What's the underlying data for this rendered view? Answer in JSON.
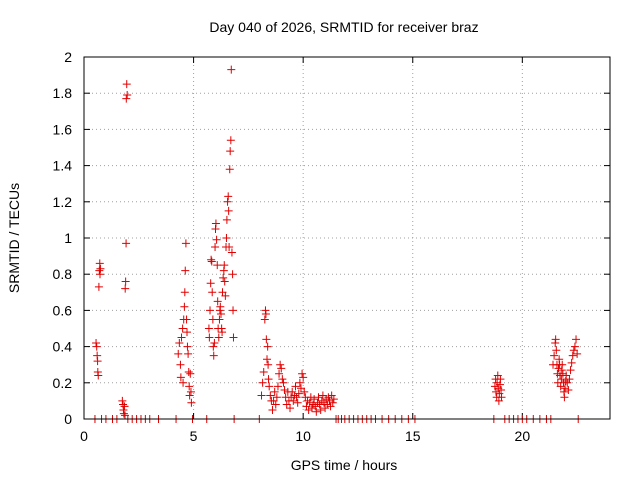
{
  "chart_data": {
    "type": "scatter",
    "title": "Day 040 of 2026, SRMTID for receiver braz",
    "xlabel": "GPS time / hours",
    "ylabel": "SRMTID / TECUs",
    "xlim": [
      0,
      24
    ],
    "ylim": [
      0,
      2
    ],
    "x_ticks": [
      0,
      5,
      10,
      15,
      20
    ],
    "x_tick_labels": [
      "0",
      "5",
      "10",
      "15",
      "20"
    ],
    "y_ticks": [
      0,
      0.2,
      0.4,
      0.6,
      0.8,
      1,
      1.2,
      1.4,
      1.6,
      1.8,
      2
    ],
    "y_tick_labels": [
      "0",
      "0.2",
      "0.4",
      "0.6",
      "0.8",
      "1",
      "1.2",
      "1.4",
      "1.6",
      "1.8",
      "2"
    ],
    "grid": true,
    "marker": "plus",
    "color": "#e00000",
    "series": [
      {
        "name": "SRMTID",
        "points": [
          [
            0.5,
            0.0
          ],
          [
            0.55,
            0.42
          ],
          [
            0.58,
            0.4
          ],
          [
            0.6,
            0.35
          ],
          [
            0.62,
            0.32
          ],
          [
            0.63,
            0.26
          ],
          [
            0.65,
            0.24
          ],
          [
            0.68,
            0.73
          ],
          [
            0.7,
            0.82
          ],
          [
            0.72,
            0.86
          ],
          [
            0.73,
            0.8
          ],
          [
            0.75,
            0.83
          ],
          [
            0.8,
            0.0
          ],
          [
            1.0,
            0.0
          ],
          [
            1.3,
            0.0
          ],
          [
            1.5,
            0.0
          ],
          [
            1.75,
            0.1
          ],
          [
            1.78,
            0.08
          ],
          [
            1.8,
            0.05
          ],
          [
            1.82,
            0.03
          ],
          [
            1.85,
            0.07
          ],
          [
            1.87,
            0.02
          ],
          [
            1.88,
            0.72
          ],
          [
            1.9,
            0.76
          ],
          [
            1.92,
            0.97
          ],
          [
            1.93,
            1.77
          ],
          [
            1.95,
            1.85
          ],
          [
            1.97,
            1.79
          ],
          [
            2.0,
            0.0
          ],
          [
            2.2,
            0.0
          ],
          [
            2.4,
            0.0
          ],
          [
            2.6,
            0.0
          ],
          [
            2.8,
            0.0
          ],
          [
            3.0,
            0.0
          ],
          [
            3.4,
            0.0
          ],
          [
            4.2,
            0.0
          ],
          [
            4.3,
            0.36
          ],
          [
            4.35,
            0.42
          ],
          [
            4.4,
            0.3
          ],
          [
            4.42,
            0.23
          ],
          [
            4.45,
            0.45
          ],
          [
            4.5,
            0.5
          ],
          [
            4.52,
            0.2
          ],
          [
            4.55,
            0.55
          ],
          [
            4.58,
            0.62
          ],
          [
            4.6,
            0.7
          ],
          [
            4.62,
            0.82
          ],
          [
            4.65,
            0.97
          ],
          [
            4.68,
            0.55
          ],
          [
            4.7,
            0.48
          ],
          [
            4.72,
            0.4
          ],
          [
            4.75,
            0.36
          ],
          [
            4.78,
            0.26
          ],
          [
            4.8,
            0.18
          ],
          [
            4.82,
            0.13
          ],
          [
            4.85,
            0.25
          ],
          [
            4.88,
            0.15
          ],
          [
            4.9,
            0.09
          ],
          [
            4.95,
            0.0
          ],
          [
            5.6,
            0.0
          ],
          [
            5.7,
            0.5
          ],
          [
            5.72,
            0.45
          ],
          [
            5.75,
            0.6
          ],
          [
            5.78,
            0.75
          ],
          [
            5.8,
            0.88
          ],
          [
            5.83,
            0.87
          ],
          [
            5.85,
            0.7
          ],
          [
            5.88,
            0.55
          ],
          [
            5.9,
            0.4
          ],
          [
            5.92,
            0.35
          ],
          [
            5.95,
            0.42
          ],
          [
            5.98,
            0.95
          ],
          [
            6.0,
            1.05
          ],
          [
            6.02,
            1.08
          ],
          [
            6.05,
            0.99
          ],
          [
            6.08,
            0.85
          ],
          [
            6.1,
            0.65
          ],
          [
            6.12,
            0.5
          ],
          [
            6.15,
            0.45
          ],
          [
            6.18,
            0.55
          ],
          [
            6.2,
            0.6
          ],
          [
            6.22,
            0.62
          ],
          [
            6.25,
            0.58
          ],
          [
            6.28,
            0.5
          ],
          [
            6.3,
            0.48
          ],
          [
            6.32,
            0.7
          ],
          [
            6.35,
            0.78
          ],
          [
            6.38,
            0.82
          ],
          [
            6.4,
            0.85
          ],
          [
            6.42,
            0.76
          ],
          [
            6.45,
            0.68
          ],
          [
            6.48,
            0.95
          ],
          [
            6.5,
            1.0
          ],
          [
            6.52,
            1.1
          ],
          [
            6.55,
            1.2
          ],
          [
            6.58,
            1.23
          ],
          [
            6.6,
            1.15
          ],
          [
            6.62,
            0.95
          ],
          [
            6.65,
            1.38
          ],
          [
            6.67,
            1.48
          ],
          [
            6.7,
            1.54
          ],
          [
            6.72,
            1.93
          ],
          [
            6.75,
            0.92
          ],
          [
            6.78,
            0.8
          ],
          [
            6.8,
            0.6
          ],
          [
            6.82,
            0.45
          ],
          [
            6.85,
            0.0
          ],
          [
            8.0,
            0.0
          ],
          [
            8.1,
            0.13
          ],
          [
            8.15,
            0.2
          ],
          [
            8.2,
            0.26
          ],
          [
            8.25,
            0.55
          ],
          [
            8.28,
            0.6
          ],
          [
            8.3,
            0.58
          ],
          [
            8.32,
            0.44
          ],
          [
            8.35,
            0.33
          ],
          [
            8.38,
            0.4
          ],
          [
            8.4,
            0.3
          ],
          [
            8.42,
            0.22
          ],
          [
            8.45,
            0.18
          ],
          [
            8.5,
            0.13
          ],
          [
            8.55,
            0.1
          ],
          [
            8.6,
            0.05
          ],
          [
            8.65,
            0.1
          ],
          [
            8.7,
            0.15
          ],
          [
            8.75,
            0.08
          ],
          [
            8.8,
            0.12
          ],
          [
            8.85,
            0.18
          ],
          [
            8.9,
            0.25
          ],
          [
            8.95,
            0.3
          ],
          [
            9.0,
            0.28
          ],
          [
            9.05,
            0.22
          ],
          [
            9.1,
            0.2
          ],
          [
            9.15,
            0.16
          ],
          [
            9.2,
            0.12
          ],
          [
            9.25,
            0.08
          ],
          [
            9.3,
            0.15
          ],
          [
            9.35,
            0.1
          ],
          [
            9.4,
            0.06
          ],
          [
            9.45,
            0.12
          ],
          [
            9.5,
            0.15
          ],
          [
            9.55,
            0.1
          ],
          [
            9.6,
            0.13
          ],
          [
            9.65,
            0.18
          ],
          [
            9.7,
            0.12
          ],
          [
            9.75,
            0.09
          ],
          [
            9.8,
            0.14
          ],
          [
            9.85,
            0.2
          ],
          [
            9.9,
            0.17
          ],
          [
            9.95,
            0.25
          ],
          [
            10.0,
            0.23
          ],
          [
            10.05,
            0.15
          ],
          [
            10.1,
            0.12
          ],
          [
            10.15,
            0.07
          ],
          [
            10.2,
            0.1
          ],
          [
            10.25,
            0.05
          ],
          [
            10.3,
            0.09
          ],
          [
            10.35,
            0.12
          ],
          [
            10.4,
            0.06
          ],
          [
            10.45,
            0.08
          ],
          [
            10.5,
            0.11
          ],
          [
            10.55,
            0.07
          ],
          [
            10.6,
            0.04
          ],
          [
            10.65,
            0.09
          ],
          [
            10.7,
            0.12
          ],
          [
            10.75,
            0.08
          ],
          [
            10.8,
            0.05
          ],
          [
            10.85,
            0.1
          ],
          [
            10.9,
            0.13
          ],
          [
            10.95,
            0.09
          ],
          [
            11.0,
            0.06
          ],
          [
            11.05,
            0.11
          ],
          [
            11.1,
            0.08
          ],
          [
            11.15,
            0.12
          ],
          [
            11.2,
            0.1
          ],
          [
            11.25,
            0.07
          ],
          [
            11.3,
            0.13
          ],
          [
            11.35,
            0.09
          ],
          [
            11.4,
            0.11
          ],
          [
            11.5,
            0.0
          ],
          [
            11.6,
            0.0
          ],
          [
            11.75,
            0.0
          ],
          [
            11.9,
            0.0
          ],
          [
            12.1,
            0.0
          ],
          [
            12.3,
            0.0
          ],
          [
            12.5,
            0.0
          ],
          [
            12.7,
            0.0
          ],
          [
            12.9,
            0.0
          ],
          [
            13.1,
            0.0
          ],
          [
            13.3,
            0.0
          ],
          [
            13.6,
            0.0
          ],
          [
            13.9,
            0.0
          ],
          [
            14.2,
            0.0
          ],
          [
            14.5,
            0.0
          ],
          [
            14.8,
            0.0
          ],
          [
            15.1,
            0.0
          ],
          [
            18.7,
            0.0
          ],
          [
            18.75,
            0.18
          ],
          [
            18.78,
            0.22
          ],
          [
            18.8,
            0.15
          ],
          [
            18.83,
            0.12
          ],
          [
            18.85,
            0.2
          ],
          [
            18.88,
            0.24
          ],
          [
            18.9,
            0.17
          ],
          [
            18.93,
            0.1
          ],
          [
            18.95,
            0.14
          ],
          [
            18.98,
            0.19
          ],
          [
            19.0,
            0.22
          ],
          [
            19.03,
            0.16
          ],
          [
            19.05,
            0.12
          ],
          [
            19.2,
            0.0
          ],
          [
            19.4,
            0.0
          ],
          [
            19.6,
            0.0
          ],
          [
            19.8,
            0.0
          ],
          [
            20.0,
            0.0
          ],
          [
            20.2,
            0.0
          ],
          [
            20.5,
            0.0
          ],
          [
            20.8,
            0.0
          ],
          [
            21.1,
            0.0
          ],
          [
            21.3,
            0.0
          ],
          [
            21.4,
            0.3
          ],
          [
            21.45,
            0.35
          ],
          [
            21.5,
            0.42
          ],
          [
            21.52,
            0.44
          ],
          [
            21.55,
            0.38
          ],
          [
            21.58,
            0.3
          ],
          [
            21.6,
            0.25
          ],
          [
            21.62,
            0.2
          ],
          [
            21.65,
            0.28
          ],
          [
            21.68,
            0.33
          ],
          [
            21.7,
            0.3
          ],
          [
            21.72,
            0.24
          ],
          [
            21.75,
            0.18
          ],
          [
            21.78,
            0.22
          ],
          [
            21.8,
            0.27
          ],
          [
            21.82,
            0.3
          ],
          [
            21.85,
            0.25
          ],
          [
            21.88,
            0.2
          ],
          [
            21.9,
            0.15
          ],
          [
            21.92,
            0.12
          ],
          [
            21.95,
            0.17
          ],
          [
            21.98,
            0.21
          ],
          [
            22.0,
            0.24
          ],
          [
            22.05,
            0.2
          ],
          [
            22.1,
            0.16
          ],
          [
            22.15,
            0.22
          ],
          [
            22.2,
            0.27
          ],
          [
            22.25,
            0.31
          ],
          [
            22.3,
            0.35
          ],
          [
            22.35,
            0.38
          ],
          [
            22.4,
            0.4
          ],
          [
            22.45,
            0.44
          ],
          [
            22.5,
            0.36
          ],
          [
            22.55,
            0.0
          ]
        ]
      }
    ]
  }
}
